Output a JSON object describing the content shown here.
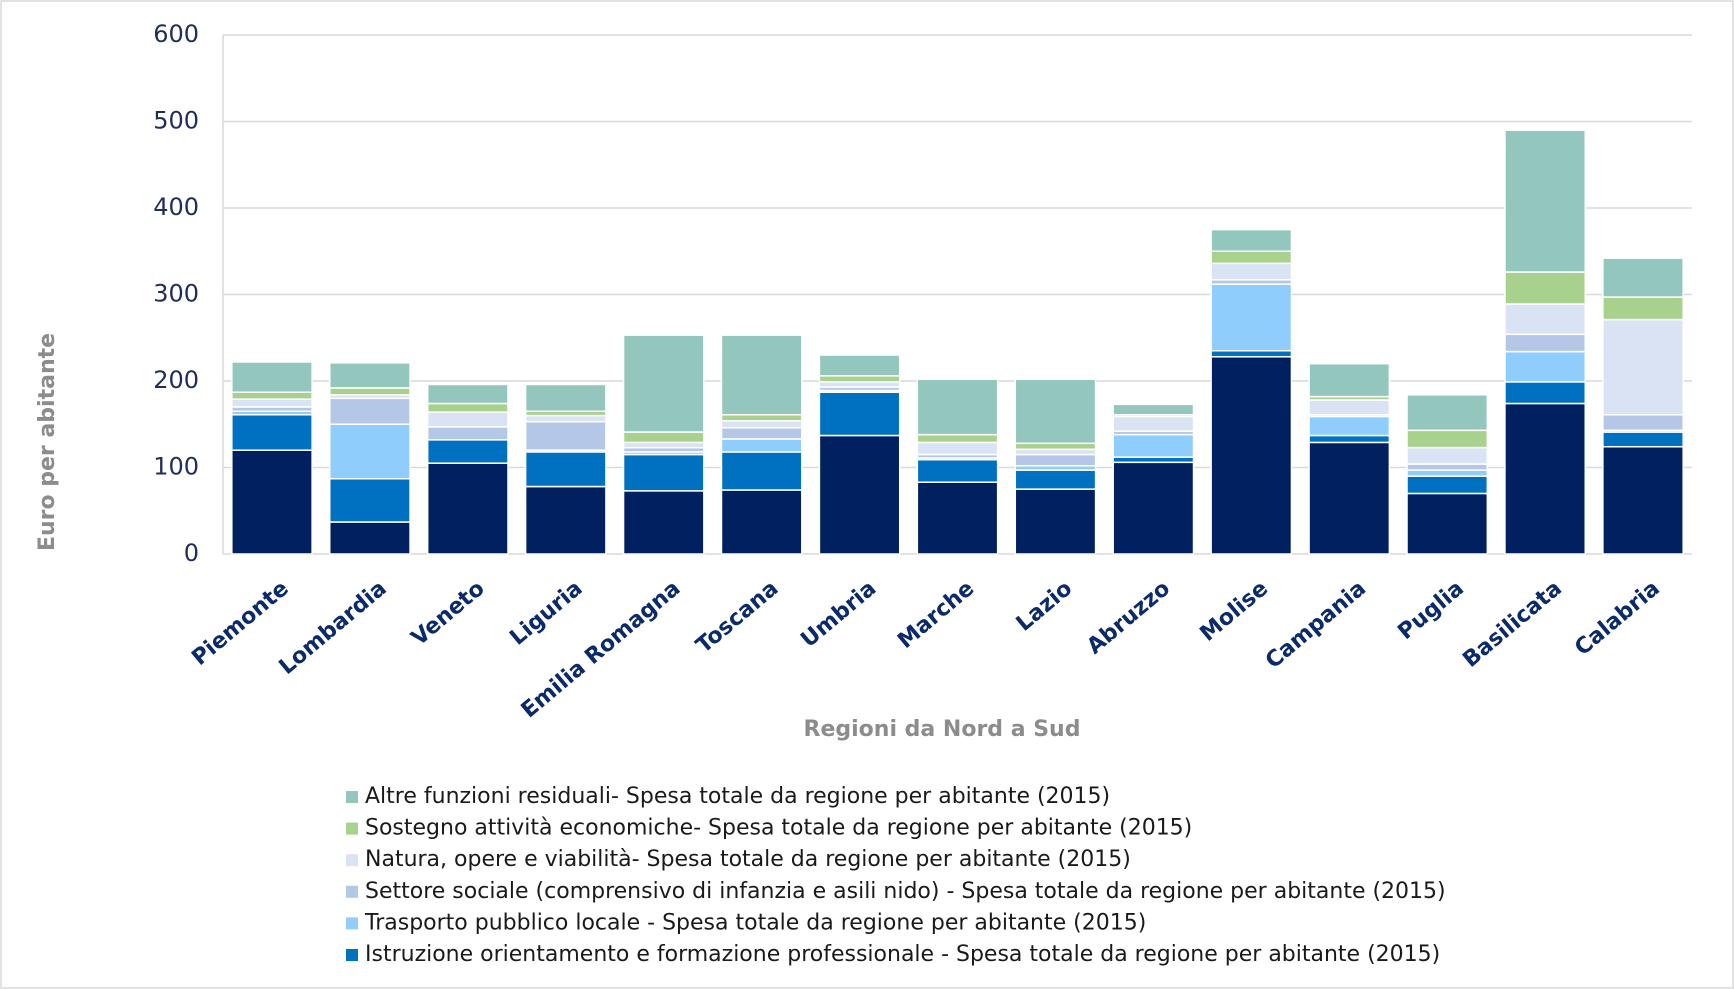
{
  "chart_data": {
    "type": "stacked_bar",
    "x_label": "Regioni da Nord a Sud",
    "y_label": "Euro per abitante",
    "categories": [
      "Piemonte",
      "Lombardia",
      "Veneto",
      "Liguria",
      "Emilia Romagna",
      "Toscana",
      "Umbria",
      "Marche",
      "Lazio",
      "Abruzzo",
      "Molise",
      "Campania",
      "Puglia",
      "Basilicata",
      "Calabria"
    ],
    "ylim": [
      0,
      600
    ],
    "yticks": [
      0,
      100,
      200,
      300,
      400,
      500,
      600
    ],
    "grid": true,
    "legend": "bottom",
    "series": [
      {
        "color": "#002060",
        "values": [
          120,
          37,
          105,
          78,
          73,
          74,
          137,
          83,
          75,
          106,
          228,
          129,
          70,
          174,
          124
        ]
      },
      {
        "name": "Istruzione orientamento e formazione professionale - Spesa totale da regione per abitante (2015)",
        "color": "#0070c0",
        "values": [
          41,
          50,
          27,
          40,
          42,
          44,
          50,
          26,
          22,
          6,
          7,
          8,
          20,
          25,
          17
        ]
      },
      {
        "name": "Trasporto pubblico locale - Spesa totale da regione per abitante (2015)",
        "color": "#8fcdfc",
        "values": [
          4,
          63,
          0,
          2,
          3,
          15,
          2,
          2,
          5,
          26,
          77,
          22,
          7,
          35,
          2
        ]
      },
      {
        "name": "Settore sociale (comprensivo di infanzia e asili nido) - Spesa totale da regione per abitante (2015)",
        "color": "#b4c7e7",
        "values": [
          5,
          30,
          15,
          33,
          5,
          13,
          4,
          4,
          13,
          4,
          5,
          2,
          7,
          20,
          18
        ]
      },
      {
        "name": "Natura, opere e viabilità- Spesa totale da regione per abitante (2015)",
        "color": "#dae3f3",
        "values": [
          9,
          4,
          17,
          7,
          6,
          8,
          6,
          14,
          6,
          17,
          19,
          17,
          19,
          35,
          110
        ]
      },
      {
        "name": "Sostegno attività economiche- Spesa totale da regione per abitante (2015)",
        "color": "#a9d18e",
        "values": [
          8,
          8,
          10,
          5,
          12,
          7,
          7,
          9,
          7,
          2,
          14,
          4,
          20,
          37,
          26
        ]
      },
      {
        "name": "Altre funzioni residuali- Spesa totale da regione per abitante (2015)",
        "color": "#93c6bd",
        "values": [
          35,
          29,
          22,
          31,
          112,
          92,
          24,
          64,
          74,
          12,
          25,
          38,
          41,
          164,
          45
        ]
      }
    ]
  }
}
